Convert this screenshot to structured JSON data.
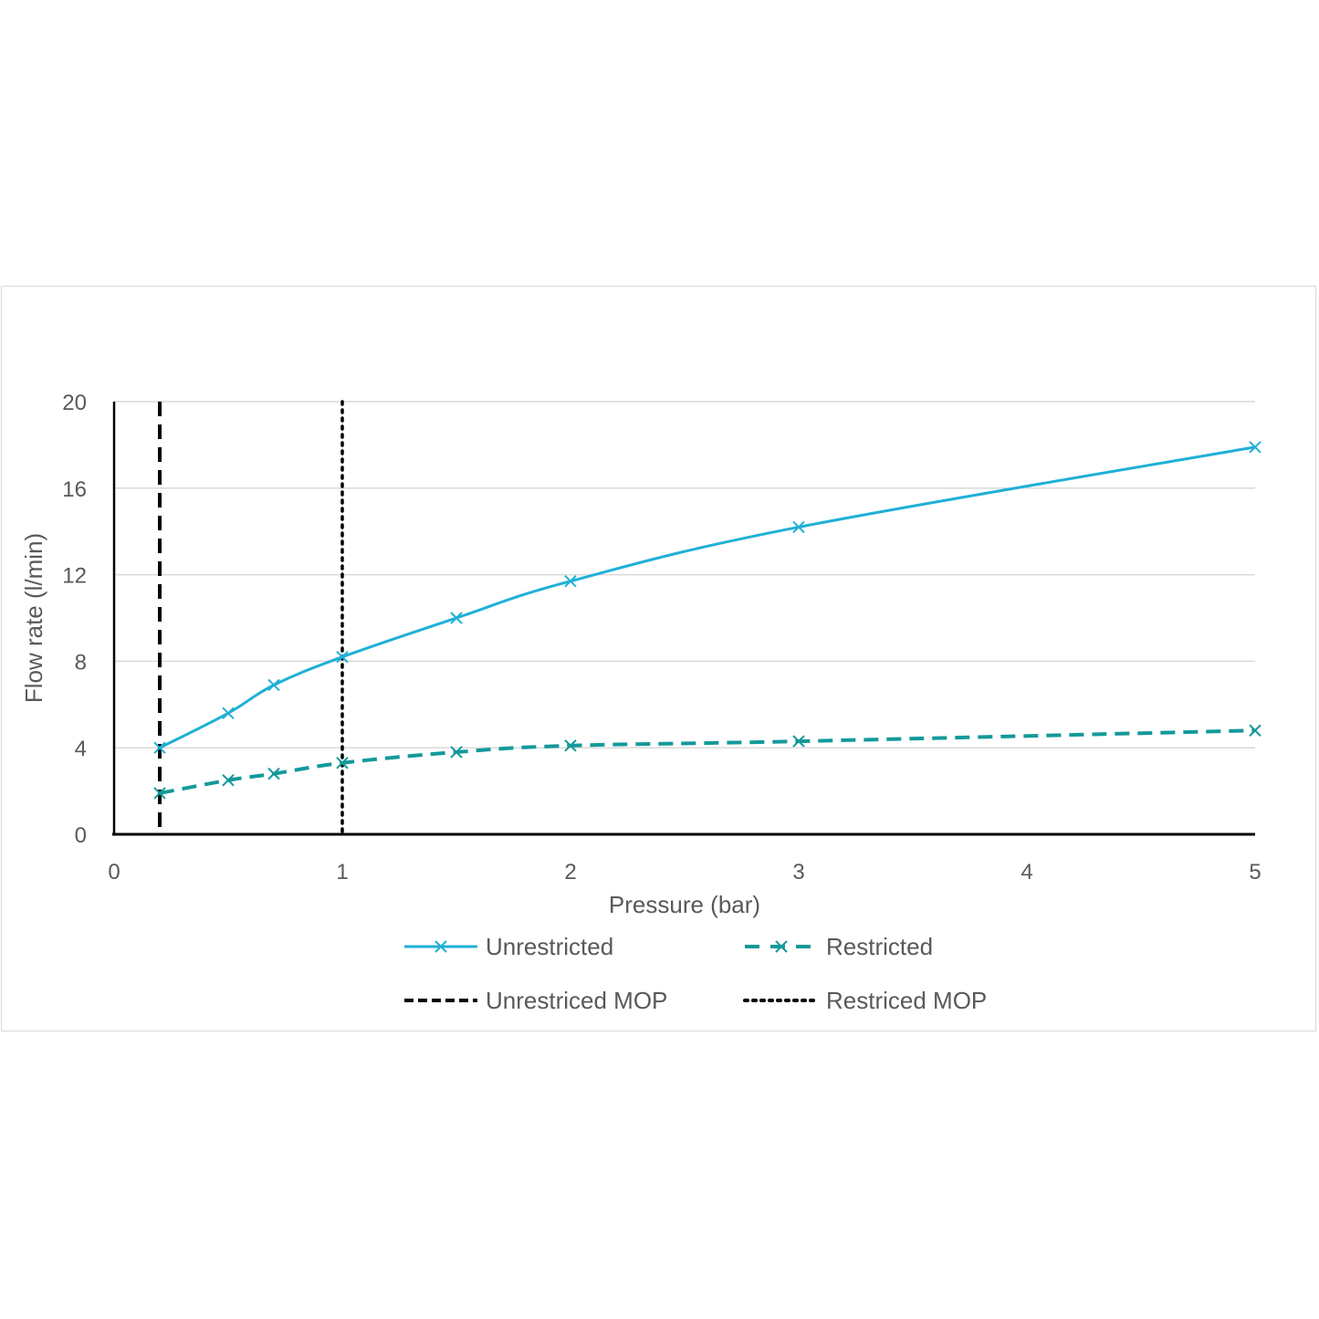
{
  "chart_data": {
    "type": "line",
    "xlabel": "Pressure (bar)",
    "ylabel": "Flow rate (l/min)",
    "xlim": [
      0,
      5
    ],
    "ylim": [
      0,
      20
    ],
    "x_ticks": [
      0,
      1,
      2,
      3,
      4,
      5
    ],
    "y_ticks": [
      0,
      4,
      8,
      12,
      16,
      20
    ],
    "grid": "horizontal",
    "legend_position": "bottom",
    "series": [
      {
        "name": "Unrestricted",
        "style": "solid",
        "marker": "x",
        "color": "#1fb0d6",
        "points": [
          [
            0.2,
            4.0
          ],
          [
            0.5,
            5.6
          ],
          [
            0.7,
            6.9
          ],
          [
            1.0,
            8.2
          ],
          [
            1.5,
            10.0
          ],
          [
            2.0,
            11.7
          ],
          [
            3.0,
            14.2
          ],
          [
            5.0,
            17.9
          ]
        ]
      },
      {
        "name": "Restricted",
        "style": "dashed",
        "marker": "x",
        "color": "#14999a",
        "points": [
          [
            0.2,
            1.9
          ],
          [
            0.5,
            2.5
          ],
          [
            0.7,
            2.8
          ],
          [
            1.0,
            3.3
          ],
          [
            1.5,
            3.8
          ],
          [
            2.0,
            4.1
          ],
          [
            3.0,
            4.3
          ],
          [
            5.0,
            4.8
          ]
        ]
      }
    ],
    "reference_lines": [
      {
        "name": "Unrestriced MOP",
        "x": 0.2,
        "style": "dashed",
        "color": "#000000"
      },
      {
        "name": "Restriced MOP",
        "x": 1.0,
        "style": "dotted",
        "color": "#000000"
      }
    ]
  }
}
